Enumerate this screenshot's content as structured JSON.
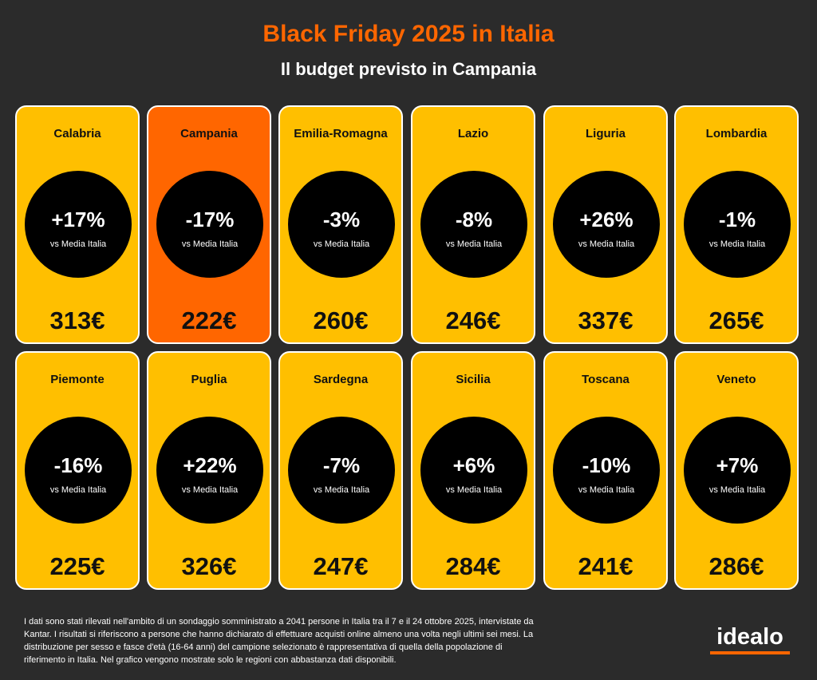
{
  "header": {
    "title": "Black Friday 2025 in Italia",
    "subtitle": "Il budget previsto in Campania"
  },
  "colors": {
    "background": "#2b2b2b",
    "card": "#ffbf00",
    "card_highlight": "#ff6600",
    "title": "#ff6600"
  },
  "regions": [
    {
      "name": "Calabria",
      "delta": "+17%",
      "vs": "vs Media Italia",
      "budget": "313€",
      "highlight": false
    },
    {
      "name": "Campania",
      "delta": "-17%",
      "vs": "vs Media Italia",
      "budget": "222€",
      "highlight": true
    },
    {
      "name": "Emilia-Romagna",
      "delta": "-3%",
      "vs": "vs Media Italia",
      "budget": "260€",
      "highlight": false
    },
    {
      "name": "Lazio",
      "delta": "-8%",
      "vs": "vs Media Italia",
      "budget": "246€",
      "highlight": false
    },
    {
      "name": "Liguria",
      "delta": "+26%",
      "vs": "vs Media Italia",
      "budget": "337€",
      "highlight": false
    },
    {
      "name": "Lombardia",
      "delta": "-1%",
      "vs": "vs Media Italia",
      "budget": "265€",
      "highlight": false
    },
    {
      "name": "Piemonte",
      "delta": "-16%",
      "vs": "vs Media Italia",
      "budget": "225€",
      "highlight": false
    },
    {
      "name": "Puglia",
      "delta": "+22%",
      "vs": "vs Media Italia",
      "budget": "326€",
      "highlight": false
    },
    {
      "name": "Sardegna",
      "delta": "-7%",
      "vs": "vs Media Italia",
      "budget": "247€",
      "highlight": false
    },
    {
      "name": "Sicilia",
      "delta": "+6%",
      "vs": "vs Media Italia",
      "budget": "284€",
      "highlight": false
    },
    {
      "name": "Toscana",
      "delta": "-10%",
      "vs": "vs Media Italia",
      "budget": "241€",
      "highlight": false
    },
    {
      "name": "Veneto",
      "delta": "+7%",
      "vs": "vs Media Italia",
      "budget": "286€",
      "highlight": false
    }
  ],
  "footnote": {
    "text": "I dati sono stati rilevati nell'ambito di un sondaggio somministrato a 2041 persone in Italia tra il 7 e il 24 ottobre 2025, intervistate da Kantar. I risultati si riferiscono a persone che hanno dichiarato di effettuare acquisti online almeno una volta negli ultimi sei mesi. La distribuzione per sesso e fasce d'età (16-64 anni) del campione selezionato è rappresentativa di quella della popolazione di riferimento in Italia. Nel grafico vengono mostrate solo le regioni con abbastanza dati disponibili."
  },
  "logo": {
    "text": "idealo"
  }
}
